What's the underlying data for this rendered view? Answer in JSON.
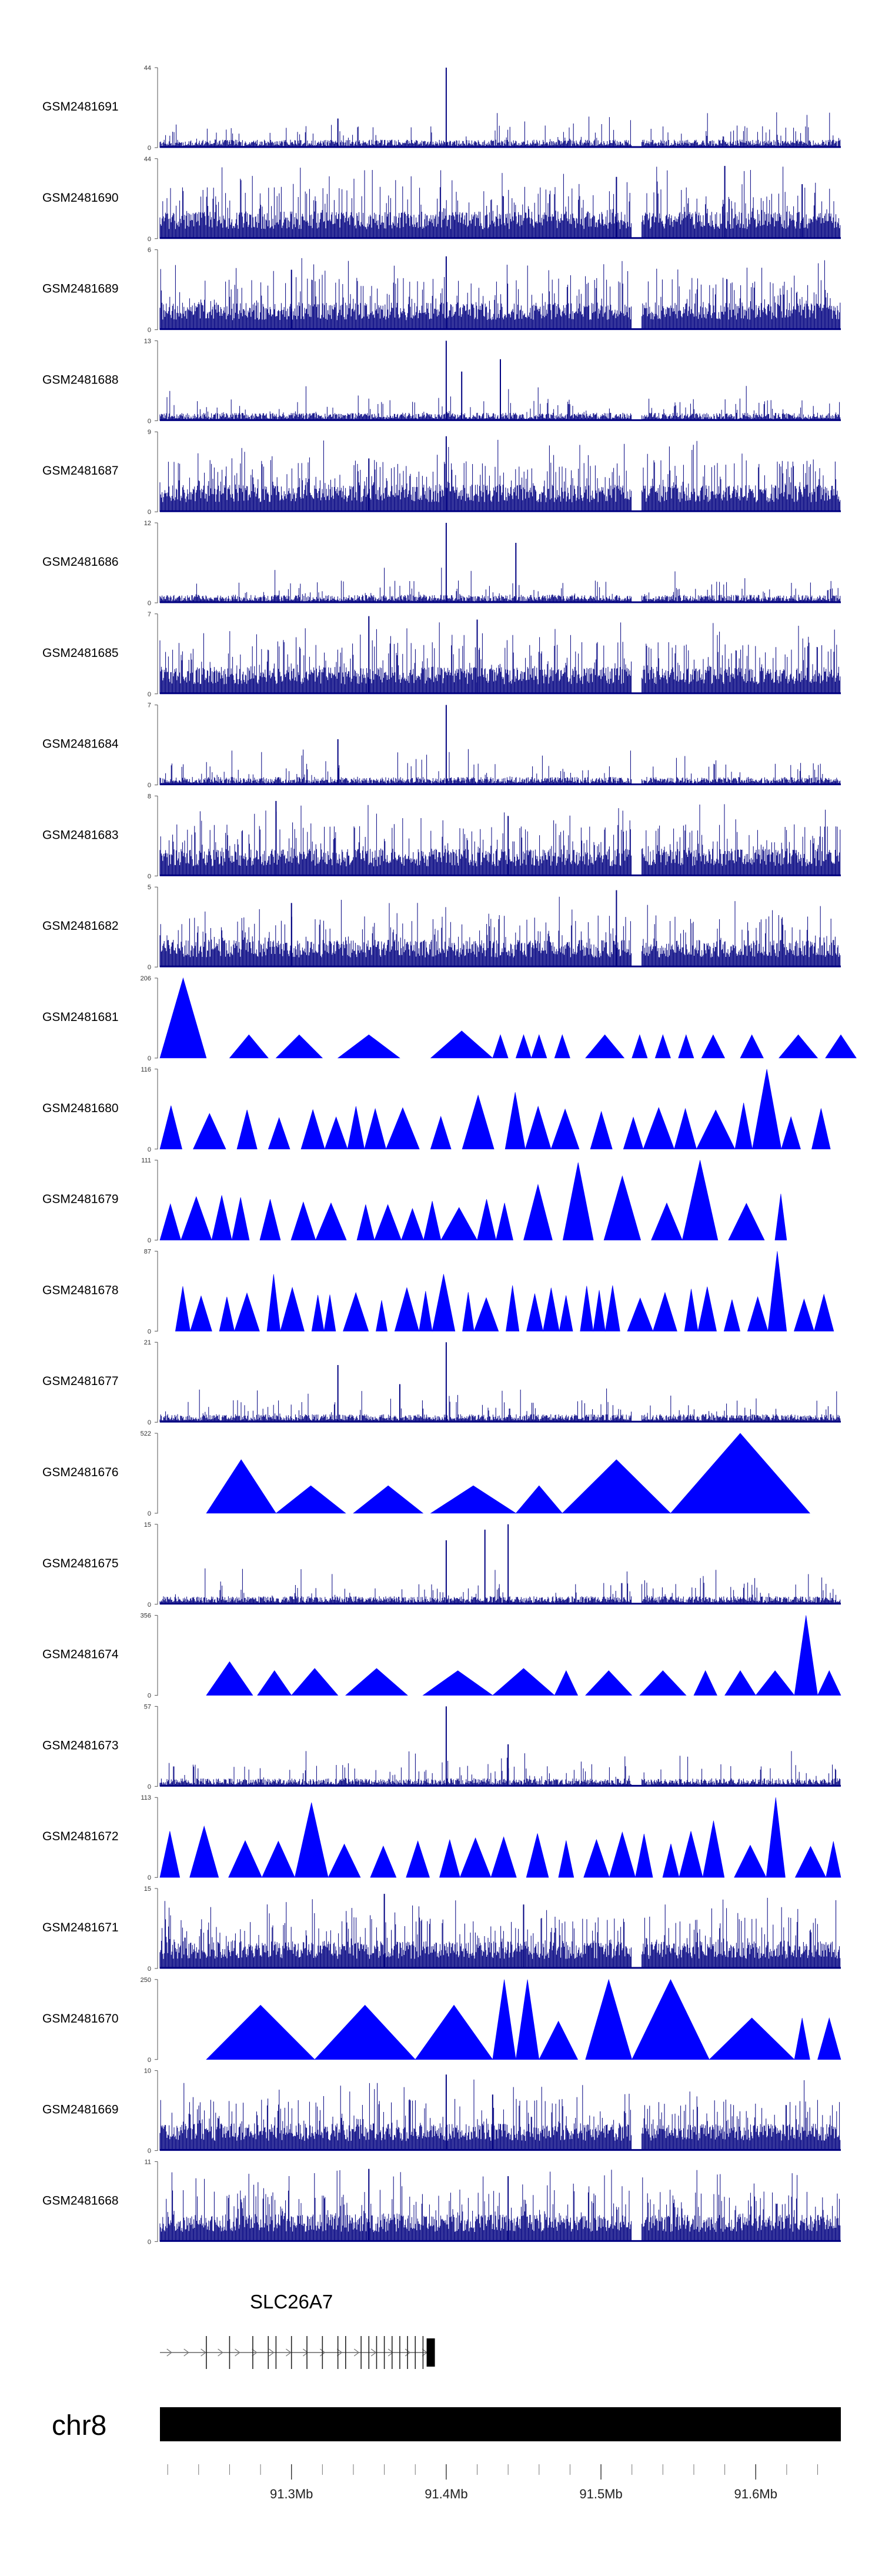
{
  "chart_data": {
    "type": "genome_tracks",
    "fill_color": "#0000FF",
    "track_color": "#000080",
    "tracks": [
      {
        "name": "GSM2481691",
        "ymax": 44,
        "ymin": 0,
        "style": "spiky",
        "peaks": [
          [
            91.4,
            44
          ],
          [
            91.33,
            16
          ]
        ]
      },
      {
        "name": "GSM2481690",
        "ymax": 44,
        "ymin": 0,
        "style": "dense",
        "peaks": [
          [
            91.58,
            40
          ],
          [
            91.51,
            34
          ],
          [
            91.63,
            30
          ]
        ]
      },
      {
        "name": "GSM2481689",
        "ymax": 6,
        "ymin": 0,
        "style": "dense",
        "peaks": [
          [
            91.4,
            5.5
          ],
          [
            91.3,
            4.5
          ]
        ]
      },
      {
        "name": "GSM2481688",
        "ymax": 13,
        "ymin": 0,
        "style": "spiky",
        "peaks": [
          [
            91.4,
            13
          ],
          [
            91.435,
            10
          ],
          [
            91.41,
            8
          ]
        ]
      },
      {
        "name": "GSM2481687",
        "ymax": 9,
        "ymin": 0,
        "style": "dense",
        "peaks": [
          [
            91.4,
            8.5
          ],
          [
            91.35,
            6
          ]
        ]
      },
      {
        "name": "GSM2481686",
        "ymax": 12,
        "ymin": 0,
        "style": "spiky",
        "peaks": [
          [
            91.4,
            12
          ],
          [
            91.445,
            9
          ]
        ]
      },
      {
        "name": "GSM2481685",
        "ymax": 7,
        "ymin": 0,
        "style": "dense",
        "peaks": [
          [
            91.35,
            6.8
          ],
          [
            91.42,
            6.5
          ]
        ]
      },
      {
        "name": "GSM2481684",
        "ymax": 7,
        "ymin": 0,
        "style": "spiky",
        "peaks": [
          [
            91.4,
            7
          ],
          [
            91.33,
            4
          ]
        ]
      },
      {
        "name": "GSM2481683",
        "ymax": 8,
        "ymin": 0,
        "style": "dense",
        "peaks": [
          [
            91.29,
            7.5
          ],
          [
            91.44,
            6
          ]
        ]
      },
      {
        "name": "GSM2481682",
        "ymax": 5,
        "ymin": 0,
        "style": "dense",
        "peaks": [
          [
            91.51,
            4.8
          ],
          [
            91.3,
            4
          ]
        ]
      },
      {
        "name": "GSM2481681",
        "ymax": 206,
        "ymin": 0,
        "style": "triangles",
        "seed": 11,
        "triangles": [
          [
            91.215,
            91.245,
            206
          ],
          [
            91.26,
            91.285,
            60
          ],
          [
            91.29,
            91.32,
            60
          ],
          [
            91.33,
            91.37,
            60
          ],
          [
            91.39,
            91.43,
            70
          ],
          [
            91.43,
            91.44,
            60
          ],
          [
            91.445,
            91.455,
            60
          ],
          [
            91.455,
            91.465,
            60
          ],
          [
            91.47,
            91.48,
            60
          ],
          [
            91.49,
            91.515,
            60
          ],
          [
            91.52,
            91.53,
            60
          ],
          [
            91.535,
            91.545,
            60
          ],
          [
            91.55,
            91.56,
            60
          ],
          [
            91.565,
            91.58,
            60
          ],
          [
            91.59,
            91.605,
            60
          ],
          [
            91.615,
            91.64,
            60
          ],
          [
            91.645,
            91.665,
            60
          ]
        ]
      },
      {
        "name": "GSM2481680",
        "ymax": 116,
        "ymin": 0,
        "style": "triangles",
        "seed": 17,
        "auto": [
          91.215,
          91.655,
          0.018,
          0.45,
          116
        ]
      },
      {
        "name": "GSM2481679",
        "ymax": 111,
        "ymin": 0,
        "style": "triangles",
        "seed": 23,
        "auto": [
          91.215,
          91.62,
          0.017,
          0.45,
          111
        ]
      },
      {
        "name": "GSM2481678",
        "ymax": 87,
        "ymin": 0,
        "style": "triangles",
        "seed": 29,
        "auto": [
          91.225,
          91.655,
          0.012,
          0.55,
          87
        ]
      },
      {
        "name": "GSM2481677",
        "ymax": 21,
        "ymin": 0,
        "style": "spiky",
        "peaks": [
          [
            91.4,
            21
          ],
          [
            91.33,
            15
          ],
          [
            91.37,
            10
          ]
        ]
      },
      {
        "name": "GSM2481676",
        "ymax": 522,
        "ymin": 0,
        "style": "triangles",
        "seed": 31,
        "triangles": [
          [
            91.245,
            91.29,
            350
          ],
          [
            91.29,
            91.335,
            180
          ],
          [
            91.34,
            91.385,
            180
          ],
          [
            91.39,
            91.445,
            180
          ],
          [
            91.445,
            91.475,
            180
          ],
          [
            91.475,
            91.545,
            350
          ],
          [
            91.545,
            91.635,
            522
          ]
        ]
      },
      {
        "name": "GSM2481675",
        "ymax": 15,
        "ymin": 0,
        "style": "spiky",
        "peaks": [
          [
            91.4,
            12
          ],
          [
            91.425,
            14
          ],
          [
            91.44,
            15
          ]
        ]
      },
      {
        "name": "GSM2481674",
        "ymax": 356,
        "ymin": 0,
        "style": "triangles",
        "seed": 37,
        "triangles": [
          [
            91.245,
            91.275,
            150
          ],
          [
            91.278,
            91.3,
            110
          ],
          [
            91.3,
            91.33,
            120
          ],
          [
            91.335,
            91.375,
            120
          ],
          [
            91.385,
            91.43,
            110
          ],
          [
            91.43,
            91.47,
            120
          ],
          [
            91.47,
            91.485,
            110
          ],
          [
            91.49,
            91.52,
            110
          ],
          [
            91.525,
            91.555,
            110
          ],
          [
            91.56,
            91.575,
            110
          ],
          [
            91.58,
            91.6,
            110
          ],
          [
            91.6,
            91.625,
            110
          ],
          [
            91.625,
            91.64,
            356
          ],
          [
            91.64,
            91.655,
            110
          ]
        ]
      },
      {
        "name": "GSM2481673",
        "ymax": 57,
        "ymin": 0,
        "style": "spiky",
        "peaks": [
          [
            91.4,
            57
          ],
          [
            91.44,
            30
          ]
        ]
      },
      {
        "name": "GSM2481672",
        "ymax": 113,
        "ymin": 0,
        "style": "triangles",
        "seed": 41,
        "auto": [
          91.215,
          91.655,
          0.016,
          0.5,
          113
        ]
      },
      {
        "name": "GSM2481671",
        "ymax": 15,
        "ymin": 0,
        "style": "dense",
        "peaks": [
          [
            91.36,
            14
          ],
          [
            91.45,
            12
          ]
        ]
      },
      {
        "name": "GSM2481670",
        "ymax": 250,
        "ymin": 0,
        "style": "triangles",
        "seed": 43,
        "triangles": [
          [
            91.245,
            91.315,
            170
          ],
          [
            91.315,
            91.38,
            170
          ],
          [
            91.38,
            91.43,
            170
          ],
          [
            91.43,
            91.445,
            250
          ],
          [
            91.445,
            91.46,
            250
          ],
          [
            91.46,
            91.485,
            120
          ],
          [
            91.49,
            91.52,
            250
          ],
          [
            91.52,
            91.57,
            250
          ],
          [
            91.57,
            91.625,
            130
          ],
          [
            91.625,
            91.635,
            130
          ],
          [
            91.64,
            91.655,
            130
          ]
        ]
      },
      {
        "name": "GSM2481669",
        "ymax": 10,
        "ymin": 0,
        "style": "dense",
        "peaks": [
          [
            91.4,
            9.5
          ],
          [
            91.43,
            7
          ]
        ]
      },
      {
        "name": "GSM2481668",
        "ymax": 11,
        "ymin": 0,
        "style": "dense",
        "peaks": [
          [
            91.35,
            10
          ],
          [
            91.44,
            9
          ]
        ]
      }
    ],
    "gene": {
      "name": "SLC26A7",
      "start": 91.215,
      "end": 91.39,
      "strand": "+",
      "exons": [
        91.245,
        91.26,
        91.275,
        91.285,
        91.29,
        91.3,
        91.31,
        91.32,
        91.33,
        91.335,
        91.345,
        91.35,
        91.355,
        91.36,
        91.365,
        91.37,
        91.375,
        91.38,
        91.385
      ]
    },
    "chromosome": {
      "label": "chr8"
    },
    "x_axis": {
      "xlim": [
        91.215,
        91.655
      ],
      "ticks": [
        91.3,
        91.4,
        91.5,
        91.6
      ],
      "tick_labels": [
        "91.3Mb",
        "91.4Mb",
        "91.5Mb",
        "91.6Mb"
      ],
      "minor_step": 0.02
    }
  }
}
